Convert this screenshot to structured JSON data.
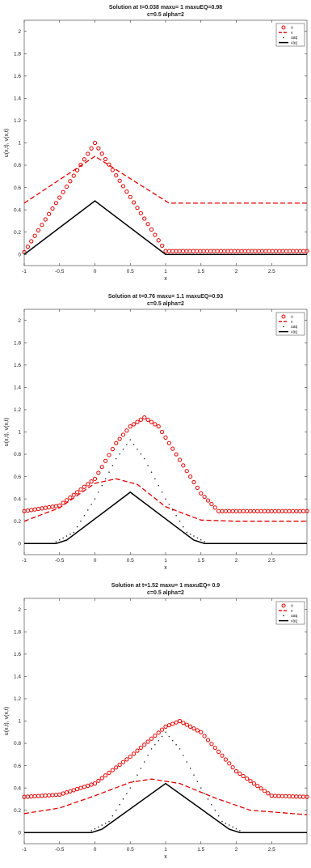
{
  "chart_data": [
    {
      "type": "line",
      "title": "Solution at t=0.038 maxu=   1 maxuEQ=0.98",
      "subtitle": "c=0.5 alpha=2",
      "xlabel": "x",
      "ylabel": "u(x,t), v(x,t)",
      "xlim": [
        -1,
        3
      ],
      "ylim": [
        -0.1,
        2.1
      ],
      "xticks": [
        "-1",
        "-0.5",
        "0",
        "0.5",
        "1",
        "1.5",
        "2",
        "2.5"
      ],
      "yticks": [
        "0",
        "0.2",
        "0.4",
        "0.6",
        "0.8",
        "1",
        "1.2",
        "1.4",
        "1.6",
        "1.8",
        "2"
      ],
      "legend_position": "top-right",
      "series": [
        {
          "name": "u",
          "style": "circles",
          "color": "#e00000",
          "x": [
            -1,
            0.0,
            1.0,
            1.1,
            3
          ],
          "y": [
            0.02,
            1.0,
            0.03,
            0.03,
            0.03
          ]
        },
        {
          "name": "v",
          "style": "dashed",
          "color": "#e00000",
          "x": [
            -1,
            0.0,
            1.05,
            3
          ],
          "y": [
            0.46,
            0.88,
            0.46,
            0.46
          ]
        },
        {
          "name": "uaq",
          "style": "dotted",
          "color": "#111111",
          "x": [],
          "y": []
        },
        {
          "name": "vaq",
          "style": "solid",
          "color": "#000000",
          "x": [
            -1,
            0.0,
            1.0,
            3
          ],
          "y": [
            0.0,
            0.48,
            0.0,
            0.0
          ]
        }
      ]
    },
    {
      "type": "line",
      "title": "Solution at t=0.76 maxu= 1.1 maxuEQ=0.93",
      "subtitle": "c=0.5 alpha=2",
      "xlabel": "x",
      "ylabel": "u(x,t), v(x,t)",
      "xlim": [
        -1,
        3
      ],
      "ylim": [
        -0.1,
        2.1
      ],
      "xticks": [
        "-1",
        "-0.5",
        "0",
        "0.5",
        "1",
        "1.5",
        "2",
        "2.5"
      ],
      "yticks": [
        "0",
        "0.2",
        "0.4",
        "0.6",
        "0.8",
        "1",
        "1.2",
        "1.4",
        "1.6",
        "1.8",
        "2"
      ],
      "legend_position": "top-right",
      "series": [
        {
          "name": "u",
          "style": "circles",
          "color": "#e00000",
          "x": [
            -1,
            -0.5,
            0.0,
            0.3,
            0.5,
            0.7,
            0.9,
            1.2,
            1.5,
            1.75,
            3
          ],
          "y": [
            0.29,
            0.34,
            0.58,
            0.9,
            1.05,
            1.13,
            1.05,
            0.75,
            0.45,
            0.29,
            0.29
          ]
        },
        {
          "name": "v",
          "style": "dashed",
          "color": "#e00000",
          "x": [
            -1,
            -0.5,
            0.0,
            0.3,
            0.6,
            1.0,
            1.5,
            2.0,
            3
          ],
          "y": [
            0.2,
            0.32,
            0.54,
            0.58,
            0.53,
            0.33,
            0.21,
            0.2,
            0.2
          ]
        },
        {
          "name": "uaq",
          "style": "dotted",
          "color": "#111111",
          "x": [
            -0.6,
            -0.3,
            0.0,
            0.3,
            0.5,
            0.7,
            1.0,
            1.3,
            1.6
          ],
          "y": [
            0.0,
            0.1,
            0.4,
            0.76,
            0.93,
            0.76,
            0.4,
            0.1,
            0.0
          ]
        },
        {
          "name": "vaq",
          "style": "solid",
          "color": "#000000",
          "x": [
            -1,
            -0.55,
            -0.4,
            0.5,
            1.4,
            1.55,
            3
          ],
          "y": [
            0.0,
            0.0,
            0.03,
            0.46,
            0.03,
            0.0,
            0.0
          ]
        }
      ]
    },
    {
      "type": "line",
      "title": "Solution at t=1.52 maxu=   1 maxuEQ= 0.9",
      "subtitle": "c=0.5 alpha=2",
      "xlabel": "x",
      "ylabel": "u(x,t), v(x,t)",
      "xlim": [
        -1,
        3
      ],
      "ylim": [
        -0.1,
        2.1
      ],
      "xticks": [
        "-1",
        "-0.5",
        "0",
        "0.5",
        "1",
        "1.5",
        "2",
        "2.5"
      ],
      "yticks": [
        "0",
        "0.2",
        "0.4",
        "0.6",
        "0.8",
        "1",
        "1.2",
        "1.4",
        "1.6",
        "1.8",
        "2"
      ],
      "legend_position": "top-right",
      "series": [
        {
          "name": "u",
          "style": "circles",
          "color": "#e00000",
          "x": [
            -1,
            -0.5,
            0.0,
            0.5,
            1.0,
            1.2,
            1.5,
            2.0,
            2.5,
            3
          ],
          "y": [
            0.32,
            0.34,
            0.44,
            0.68,
            0.95,
            1.0,
            0.9,
            0.55,
            0.33,
            0.32
          ]
        },
        {
          "name": "v",
          "style": "dashed",
          "color": "#e00000",
          "x": [
            -1,
            -0.5,
            0.0,
            0.5,
            0.8,
            1.2,
            1.7,
            2.2,
            3
          ],
          "y": [
            0.17,
            0.22,
            0.33,
            0.45,
            0.48,
            0.44,
            0.31,
            0.2,
            0.16
          ]
        },
        {
          "name": "uaq",
          "style": "dotted",
          "color": "#111111",
          "x": [
            -0.1,
            0.2,
            0.5,
            0.8,
            1.0,
            1.2,
            1.5,
            1.8,
            2.1
          ],
          "y": [
            0.0,
            0.1,
            0.4,
            0.75,
            0.9,
            0.75,
            0.4,
            0.1,
            0.0
          ]
        },
        {
          "name": "vaq",
          "style": "solid",
          "color": "#000000",
          "x": [
            -1,
            -0.05,
            0.1,
            1.0,
            1.9,
            2.05,
            3
          ],
          "y": [
            0.0,
            0.0,
            0.03,
            0.44,
            0.03,
            0.0,
            0.0
          ]
        }
      ]
    }
  ]
}
